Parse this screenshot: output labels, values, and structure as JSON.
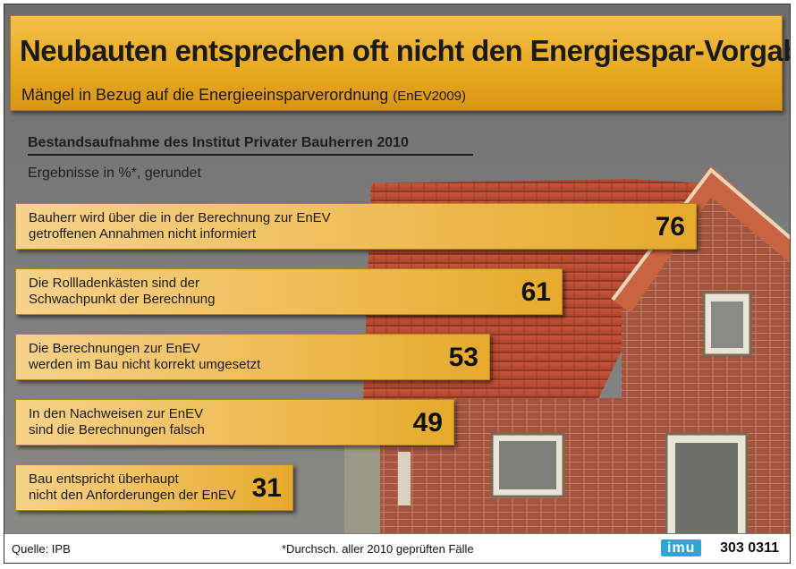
{
  "title": "Neubauten entsprechen oft nicht den Energiespar-Vorgaben",
  "subtitle": "Mängel in Bezug auf die Energieeinsparverordnung",
  "subtitle_small": "(EnEV2009)",
  "section_title": "Bestandsaufnahme des Institut Privater Bauherren 2010",
  "section_subtitle": "Ergebnisse in %*, gerundet",
  "footer": {
    "source": "Quelle: IPB",
    "note": "*Durchsch. aller 2010 geprüften Fälle",
    "logo": "imu",
    "code": "303 0311"
  },
  "colors": {
    "bar": "#f0c060",
    "banner": "#e7a820",
    "logo": "#2aa7d6"
  },
  "chart_data": {
    "type": "bar",
    "orientation": "horizontal",
    "title": "Neubauten entsprechen oft nicht den Energiespar-Vorgaben",
    "categories": [
      "Bauherr wird über die in der Berechnung zur EnEV\ngetroffenen Annahmen nicht informiert",
      "Die Rollladenkästen sind der\nSchwachpunkt der Berechnung",
      "Die Berechnungen zur EnEV\nwerden im Bau nicht korrekt umgesetzt",
      "In den Nachweisen zur EnEV\nsind die Berechnungen falsch",
      "Bau entspricht überhaupt\nnicht den Anforderungen der EnEV"
    ],
    "values": [
      76,
      61,
      53,
      49,
      31
    ],
    "value_labels": [
      "76",
      "61",
      "53",
      "49",
      "31"
    ],
    "xlim": [
      0,
      76
    ],
    "grid": false
  }
}
